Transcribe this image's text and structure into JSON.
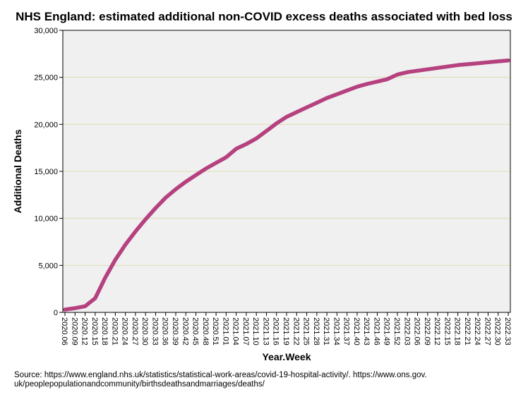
{
  "chart_data": {
    "type": "line",
    "title": "NHS England: estimated additional non-COVID excess deaths associated with bed loss",
    "xlabel": "Year.Week",
    "ylabel": "Additional Deaths",
    "ylim": [
      0,
      30000
    ],
    "yticks": [
      0,
      5000,
      10000,
      15000,
      20000,
      25000,
      30000
    ],
    "ytick_labels": [
      "0",
      "5,000",
      "10,000",
      "15,000",
      "20,000",
      "25,000",
      "30,000"
    ],
    "grid": "horizontal",
    "categories": [
      "2020.06",
      "2020.09",
      "2020.12",
      "2020.15",
      "2020.18",
      "2020.21",
      "2020.24",
      "2020.27",
      "2020.30",
      "2020.33",
      "2020.36",
      "2020.39",
      "2020.42",
      "2020.45",
      "2020.48",
      "2020.51",
      "2021.01",
      "2021.04",
      "2021.07",
      "2021.10",
      "2021.13",
      "2021.16",
      "2021.19",
      "2021.22",
      "2021.25",
      "2021.28",
      "2021.31",
      "2021.34",
      "2021.37",
      "2021.40",
      "2021.43",
      "2021.46",
      "2021.49",
      "2021.52",
      "2022.03",
      "2022.06",
      "2022.09",
      "2022.12",
      "2022.15",
      "2022.18",
      "2022.21",
      "2022.24",
      "2022.27",
      "2022.30",
      "2022.33"
    ],
    "series": [
      {
        "name": "Additional Deaths",
        "color": "#b5417f",
        "values": [
          300,
          450,
          650,
          1500,
          3700,
          5600,
          7200,
          8600,
          9900,
          11100,
          12200,
          13100,
          13900,
          14600,
          15300,
          15900,
          16500,
          17400,
          17900,
          18500,
          19300,
          20100,
          20800,
          21300,
          21800,
          22300,
          22800,
          23200,
          23600,
          24000,
          24300,
          24550,
          24800,
          25300,
          25550,
          25700,
          25850,
          26000,
          26150,
          26300,
          26400,
          26500,
          26600,
          26700,
          26800
        ]
      }
    ]
  },
  "source": {
    "line1": "Source: https://www.england.nhs.uk/statistics/statistical-work-areas/covid-19-hospital-activity/. https://www.ons.gov.",
    "line2": "uk/peoplepopulationandcommunity/birthsdeathsandmarriages/deaths/"
  },
  "colors": {
    "plot_background": "#f0f0f0",
    "gridline": "#dedeb4",
    "line": "#b5417f"
  }
}
